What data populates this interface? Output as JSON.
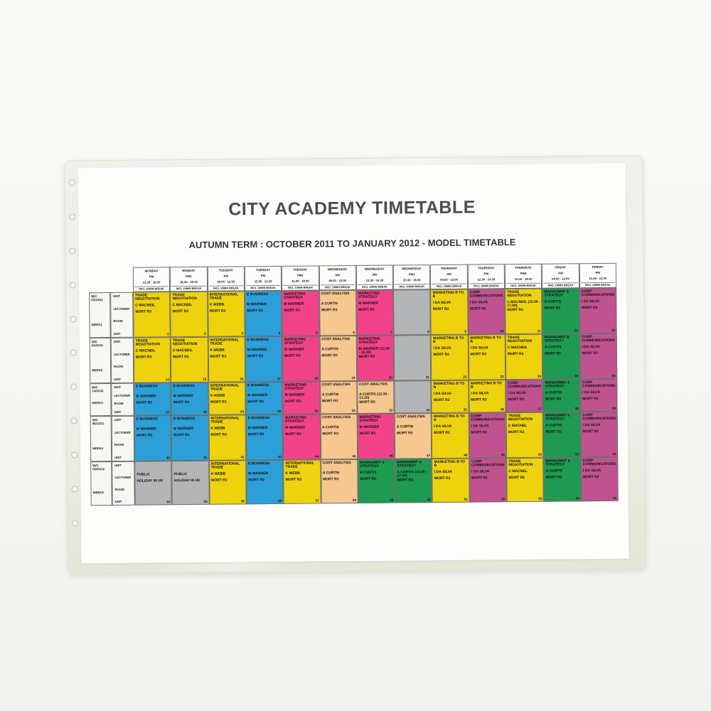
{
  "title": "CITY ACADEMY TIMETABLE",
  "subtitle": "AUTUMN TERM : OCTOBER 2011 TO JANUARY 2012 - MODEL TIMETABLE",
  "colors": {
    "yellow": "#eed20e",
    "blue": "#2d9fd8",
    "pink": "#f2428a",
    "peach": "#f6c78f",
    "gray": "#b4b5b6",
    "magenta": "#c0538f",
    "green": "#1e9a52"
  },
  "columns": [
    {
      "day": "MONDAY",
      "session": "PM",
      "time": "12.30 - 16.30",
      "note": "INCL 10MIN BREAK"
    },
    {
      "day": "MONDAY",
      "session": "PM2",
      "time": "16.30 - 18.30",
      "note": "INCL 10MIN BREAK"
    },
    {
      "day": "TUESDAY",
      "session": "AM",
      "time": "09.00 - 12.00",
      "note": "INCL 10MIN BREAK"
    },
    {
      "day": "TUESDAY",
      "session": "PM",
      "time": "12.30 - 14.30",
      "note": "INCL 10MIN BREAK"
    },
    {
      "day": "TUESDAY",
      "session": "PM2",
      "time": "15.00 - 18.00",
      "note": "INCL 10MIN BREAK"
    },
    {
      "day": "WEDNESDAY",
      "session": "AM",
      "time": "09.00 - 12.00",
      "note": "INCL 10MIN BREAK"
    },
    {
      "day": "WEDNESDAY",
      "session": "PM",
      "time": "12.30 - 14.30",
      "note": "INCL 10MIN BREAK"
    },
    {
      "day": "WEDNESDAY",
      "session": "PM2",
      "time": "15.00 - 18.00",
      "note": "INCL 10MIN BREAK"
    },
    {
      "day": "THURSDAY",
      "session": "AM",
      "time": "09.00 - 12.00",
      "note": "INCL 10MIN BREAK"
    },
    {
      "day": "THURSDAY",
      "session": "PM",
      "time": "12.30 - 14.30",
      "note": "INCL 10MIN BREAK"
    },
    {
      "day": "THURSDAY",
      "session": "PM2",
      "time": "15.00 - 18.00",
      "note": "INCL 10MIN BREAK"
    },
    {
      "day": "FRIDAY",
      "session": "AM",
      "time": "09.00 - 12.00",
      "note": "INCL 10MIN BREAK"
    },
    {
      "day": "FRIDAY",
      "session": "PM",
      "time": "12.30 - 14.30",
      "note": "INCL 10MIN BREAK"
    }
  ],
  "row_labels": [
    "UNIT",
    "LECTURER",
    "ROOM",
    "UNIT"
  ],
  "weeks": [
    {
      "wc": "W/C 03/10/11",
      "week": "WEEK1",
      "cells": [
        {
          "color": "yellow",
          "subject": "TRADE NEGOTIATION",
          "lecturer": "C MACNEIL",
          "room": "MORT R3",
          "num": 1
        },
        {
          "color": "yellow",
          "subject": "TRADE NEGOTIATION",
          "lecturer": "C MACNEIL",
          "room": "MORT R3",
          "num": 2
        },
        {
          "color": "yellow",
          "subject": "INTERNATIONAL TRADE",
          "lecturer": "K WEBB",
          "room": "MORT R3",
          "num": 3
        },
        {
          "color": "blue",
          "subject": "E BUSINESS",
          "lecturer": "M WARNER",
          "room": "MORT R3",
          "num": 4
        },
        {
          "color": "pink",
          "subject": "MARKETING STRATEGY",
          "lecturer": "M WARNER",
          "room": "MORT R3",
          "num": 5
        },
        {
          "color": "peach",
          "subject": "COST ANALYSIS",
          "lecturer": "A CURTIS",
          "room": "MORT R3",
          "num": 6
        },
        {
          "color": "pink",
          "subject": "MARKETING STRATEGY",
          "lecturer": "M WARNER",
          "room": "MORT R3",
          "num": 7
        },
        {
          "color": "gray",
          "subject": "",
          "lecturer": "",
          "room": "",
          "num": 8
        },
        {
          "color": "yellow",
          "subject": "MARKETING  B TO B",
          "lecturer": "I DA SILVA",
          "room": "MORT R2",
          "num": 9
        },
        {
          "color": "magenta",
          "subject": "CORP COMMUNICATIONS",
          "lecturer": "I DA SILVA",
          "room": "MORT R2",
          "num": 10
        },
        {
          "color": "yellow",
          "subject": "TRADE NEGOTIATION",
          "lecturer": "C MACNEIL (15.00 - 17.00)",
          "room": "MORT R3",
          "num": 11
        },
        {
          "color": "green",
          "subject": "MANAGMNT & STRATEGY",
          "lecturer": "A CURTIS",
          "room": "MORT R2",
          "num": 12
        },
        {
          "color": "magenta",
          "subject": "CORP COMMUNICATIONS",
          "lecturer": "I DA SILVA",
          "room": "MORT R2",
          "num": 13
        }
      ]
    },
    {
      "wc": "W/C 24/10/11",
      "week": "WEEK2",
      "cells": [
        {
          "color": "yellow",
          "subject": "TRADE NEGOTIATION",
          "lecturer": "C MACNEIL",
          "room": "MORT R3",
          "num": 14
        },
        {
          "color": "yellow",
          "subject": "TRADE NEGOTIATION",
          "lecturer": "C MACNEIL",
          "room": "MORT R3",
          "num": 15
        },
        {
          "color": "yellow",
          "subject": "INTERNATIONAL TRADE",
          "lecturer": "K WEBB",
          "room": "MORT R3",
          "num": 16
        },
        {
          "color": "blue",
          "subject": "E BUSINESS",
          "lecturer": "M WARNER",
          "room": "MORT R3",
          "num": 17
        },
        {
          "color": "pink",
          "subject": "MARKETING STRATEGY",
          "lecturer": "M WARNER",
          "room": "MORT R3",
          "num": 18
        },
        {
          "color": "peach",
          "subject": "COST ANALYSIS",
          "lecturer": "A CURTIS",
          "room": "MORT R3",
          "num": 19
        },
        {
          "color": "pink",
          "subject": "MARKETING STRATEGY",
          "lecturer": "M WARNER (12.30 - 15.30)",
          "room": "MORT R3",
          "num": 20
        },
        {
          "color": "gray",
          "subject": "",
          "lecturer": "",
          "room": "",
          "num": 21
        },
        {
          "color": "yellow",
          "subject": "MARKETING  B TO B",
          "lecturer": "I DA SILVA",
          "room": "MORT R2",
          "num": 22
        },
        {
          "color": "yellow",
          "subject": "MARKETING  B TO B",
          "lecturer": "I DA SILVA",
          "room": "MORT R2",
          "num": 23
        },
        {
          "color": "yellow",
          "subject": "TRADE NEGOTIATION",
          "lecturer": "C MACNEIL",
          "room": "MORT R2",
          "num": 24
        },
        {
          "color": "green",
          "subject": "MANAGMNT & STRATEGY",
          "lecturer": "A CURTIS",
          "room": "MORT R2",
          "num": 25
        },
        {
          "color": "magenta",
          "subject": "CORP COMMUNICATIONS",
          "lecturer": "I DA SILVA",
          "room": "MORT R2",
          "num": 26
        }
      ]
    },
    {
      "wc": "W/C 14/11/11",
      "week": "WEEK3",
      "cells": [
        {
          "color": "blue",
          "subject": "E BUSINESS",
          "lecturer": "M WARNER",
          "room": "MORT R3",
          "num": 27
        },
        {
          "color": "blue",
          "subject": "E BUSINESS",
          "lecturer": "M WARNER",
          "room": "MORT R3",
          "num": 28
        },
        {
          "color": "yellow",
          "subject": "INTERNATIONAL TRADE",
          "lecturer": "K WEBB",
          "room": "MORT R3",
          "num": 29
        },
        {
          "color": "blue",
          "subject": "E BUSINESS",
          "lecturer": "M WARNER",
          "room": "MORT R3",
          "num": 30
        },
        {
          "color": "pink",
          "subject": "MARKETING STRATEGY",
          "lecturer": "M WARNER",
          "room": "MORT R3",
          "num": 31
        },
        {
          "color": "peach",
          "subject": "COST ANALYSIS",
          "lecturer": "A CURTIS",
          "room": "MORT R3",
          "num": 32
        },
        {
          "color": "peach",
          "subject": "COST ANALYSIS",
          "lecturer": "A CURTIS (12.30 - 13.30)",
          "room": "MORT R3",
          "num": 33
        },
        {
          "color": "gray",
          "subject": "",
          "lecturer": "",
          "room": "",
          "num": 34
        },
        {
          "color": "yellow",
          "subject": "MARKETING  B TO B",
          "lecturer": "I DA SILVA",
          "room": "MORT R2",
          "num": 35
        },
        {
          "color": "yellow",
          "subject": "MARKETING  B TO B",
          "lecturer": "I DA SILVA",
          "room": "MORT R2",
          "num": 36
        },
        {
          "color": "magenta",
          "subject": "CORP COMMUNICATIONS",
          "lecturer": "I DA SILVA",
          "room": "MORT R2",
          "num": 37
        },
        {
          "color": "green",
          "subject": "MANAGMNT & STRATEGY",
          "lecturer": "A CURTIS",
          "room": "MORT R2",
          "num": 38
        },
        {
          "color": "magenta",
          "subject": "CORP COMMUNICATIONS",
          "lecturer": "I DA SILVA",
          "room": "MORT R2",
          "num": 39
        }
      ]
    },
    {
      "wc": "W/C 05/12/11",
      "week": "WEEK4",
      "cells": [
        {
          "color": "blue",
          "subject": "E BUSINESS",
          "lecturer": "M WARNER",
          "room": "MORT R3",
          "num": 40
        },
        {
          "color": "blue",
          "subject": "E BUSINESS",
          "lecturer": "M WARNER",
          "room": "MORT R3",
          "num": 41
        },
        {
          "color": "yellow",
          "subject": "INTERNATIONAL TRADE",
          "lecturer": "K WEBB",
          "room": "MORT R3",
          "num": 42
        },
        {
          "color": "blue",
          "subject": "E BUSINESS",
          "lecturer": "M WARNER",
          "room": "MORT R3",
          "num": 43
        },
        {
          "color": "pink",
          "subject": "MARKETING STRATEGY",
          "lecturer": "M WARNER",
          "room": "MORT R3",
          "num": 44
        },
        {
          "color": "peach",
          "subject": "COST ANALYSIS",
          "lecturer": "A CURTIS",
          "room": "MORT R3",
          "num": 45
        },
        {
          "color": "pink",
          "subject": "MARKETING STRATEGY",
          "lecturer": "M WARNER",
          "room": "MORT R3",
          "num": 46
        },
        {
          "color": "peach",
          "subject": "COST ANALYSIS",
          "lecturer": "A CURTIS",
          "room": "MORT R3",
          "num": 47
        },
        {
          "color": "yellow",
          "subject": "MARKETING  B TO B",
          "lecturer": "I DA SILVA",
          "room": "MORT R2",
          "num": 48
        },
        {
          "color": "magenta",
          "subject": "CORP COMMUNICATIONS",
          "lecturer": "I DA SILVA",
          "room": "MORT R2",
          "num": 49
        },
        {
          "color": "yellow",
          "subject": "TRADE NEGOTIATION",
          "lecturer": "C MACNEL",
          "room": "MORT R2",
          "num": 50
        },
        {
          "color": "green",
          "subject": "MANAGMNT & STRATEGY",
          "lecturer": "A CURTIS",
          "room": "MORT R2",
          "num": 51
        },
        {
          "color": "magenta",
          "subject": "CORP COMMUNICATIONS",
          "lecturer": "I DA SILVA",
          "room": "MORT R2",
          "num": 52
        }
      ]
    },
    {
      "wc": "W/C 02/01/12",
      "week": "WEEK5",
      "cells": [
        {
          "color": "gray",
          "subject": "",
          "lecturer": "PUBLIC",
          "room": "HOLIDAY IN UK",
          "num": 53
        },
        {
          "color": "gray",
          "subject": "",
          "lecturer": "PUBLIC",
          "room": "HOLIDAY IN UK",
          "num": 54
        },
        {
          "color": "yellow",
          "subject": "INTERNATIONAL TRADE",
          "lecturer": "K WEBB",
          "room": "MORT R3",
          "num": 55
        },
        {
          "color": "blue",
          "subject": "E BUSINESS",
          "lecturer": "M WARNER",
          "room": "MORT R3",
          "num": 56
        },
        {
          "color": "yellow",
          "subject": "INTERNATIONAL TRADE",
          "lecturer": "K WEBB",
          "room": "MORT R3",
          "num": 57
        },
        {
          "color": "peach",
          "subject": "COST ANALYSIS",
          "lecturer": "A CURTIS",
          "room": "MORT R3",
          "num": 58
        },
        {
          "color": "green",
          "subject": "MANAGMNT & STRATEGY",
          "lecturer": "A CURTIS",
          "room": "MORT R2",
          "num": 59
        },
        {
          "color": "green",
          "subject": "MANAGMNT & STRATEGY",
          "lecturer": "A CURTIS (15.00 - 17.00)",
          "room": "MORT R2",
          "num": 60
        },
        {
          "color": "yellow",
          "subject": "MARKETING  B TO B",
          "lecturer": "I DA SILVA",
          "room": "MORT R2",
          "num": 61
        },
        {
          "color": "magenta",
          "subject": "CORP COMMUNICATIONS",
          "lecturer": "I DA SILVA",
          "room": "MORT R2",
          "num": 62
        },
        {
          "color": "yellow",
          "subject": "TRADE NEGOTIATION",
          "lecturer": "C MACNEL",
          "room": "MORT R2",
          "num": 63
        },
        {
          "color": "green",
          "subject": "MANAGMNT & STRATEGY",
          "lecturer": "A CURTIS",
          "room": "MORT R2",
          "num": 64
        },
        {
          "color": "magenta",
          "subject": "CORP COMMUNICATIONS",
          "lecturer": "I DA SILVA",
          "room": "MORT R2",
          "num": 65
        }
      ]
    }
  ]
}
